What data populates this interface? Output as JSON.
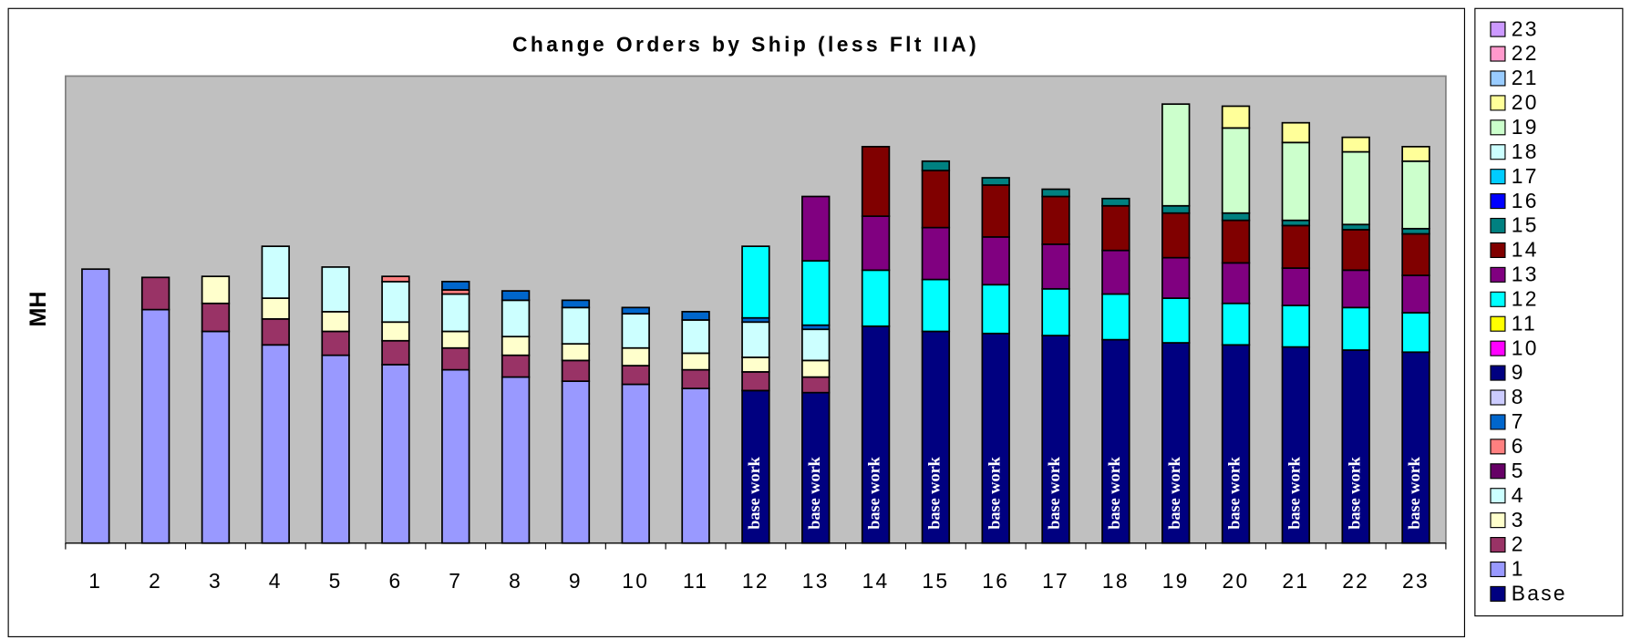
{
  "chart_data": {
    "type": "stacked_bar",
    "title": "Change Orders by Ship (less Flt IIA)",
    "y_label": "MH",
    "annotation": "base work",
    "categories": [
      "1",
      "2",
      "3",
      "4",
      "5",
      "6",
      "7",
      "8",
      "9",
      "10",
      "11",
      "12",
      "13",
      "14",
      "15",
      "16",
      "17",
      "18",
      "19",
      "20",
      "21",
      "22",
      "23"
    ],
    "ylim": [
      0,
      450
    ],
    "series": [
      {
        "name": "Base",
        "color": "#000080",
        "values": [
          null,
          null,
          null,
          null,
          null,
          null,
          null,
          null,
          null,
          null,
          null,
          147,
          145,
          209,
          204,
          202,
          200,
          196,
          193,
          191,
          189,
          186,
          184
        ]
      },
      {
        "name": "1",
        "color": "#9999ff",
        "values": [
          264,
          225,
          204,
          191,
          181,
          172,
          167,
          160,
          156,
          153,
          149,
          null,
          null,
          null,
          null,
          null,
          null,
          null,
          null,
          null,
          null,
          null,
          null
        ]
      },
      {
        "name": "2",
        "color": "#993366",
        "values": [
          null,
          31,
          27,
          25,
          23,
          23,
          21,
          21,
          20,
          18,
          18,
          18,
          15,
          null,
          null,
          null,
          null,
          null,
          null,
          null,
          null,
          null,
          null
        ]
      },
      {
        "name": "3",
        "color": "#ffffcc",
        "values": [
          null,
          null,
          26,
          20,
          19,
          18,
          16,
          18,
          16,
          17,
          16,
          14,
          16,
          null,
          null,
          null,
          null,
          null,
          null,
          null,
          null,
          null,
          null
        ]
      },
      {
        "name": "4",
        "color": "#ccffff",
        "values": [
          null,
          null,
          null,
          50,
          43,
          39,
          36,
          35,
          35,
          33,
          32,
          34,
          30,
          null,
          null,
          null,
          null,
          null,
          null,
          null,
          null,
          null,
          null
        ]
      },
      {
        "name": "5",
        "color": "#660066",
        "values": [
          null,
          null,
          null,
          null,
          null,
          null,
          null,
          null,
          null,
          null,
          null,
          null,
          null,
          null,
          null,
          null,
          null,
          null,
          null,
          null,
          null,
          null,
          null
        ]
      },
      {
        "name": "6",
        "color": "#ff8080",
        "values": [
          null,
          null,
          null,
          null,
          null,
          5,
          4,
          null,
          null,
          null,
          null,
          null,
          null,
          null,
          null,
          null,
          null,
          null,
          null,
          null,
          null,
          null,
          null
        ]
      },
      {
        "name": "7",
        "color": "#0066cc",
        "values": [
          null,
          null,
          null,
          null,
          null,
          null,
          8,
          9,
          7,
          6,
          8,
          4,
          4,
          null,
          null,
          null,
          null,
          null,
          null,
          null,
          null,
          null,
          null
        ]
      },
      {
        "name": "8",
        "color": "#ccccff",
        "values": [
          null,
          null,
          null,
          null,
          null,
          null,
          null,
          null,
          null,
          null,
          null,
          null,
          null,
          null,
          null,
          null,
          null,
          null,
          null,
          null,
          null,
          null,
          null
        ]
      },
      {
        "name": "9",
        "color": "#000080",
        "values": [
          null,
          null,
          null,
          null,
          null,
          null,
          null,
          null,
          null,
          null,
          null,
          null,
          null,
          null,
          null,
          null,
          null,
          null,
          null,
          null,
          null,
          null,
          null
        ]
      },
      {
        "name": "10",
        "color": "#ff00ff",
        "values": [
          null,
          null,
          null,
          null,
          null,
          null,
          null,
          null,
          null,
          null,
          null,
          null,
          null,
          null,
          null,
          null,
          null,
          null,
          null,
          null,
          null,
          null,
          null
        ]
      },
      {
        "name": "11",
        "color": "#ffff00",
        "values": [
          null,
          null,
          null,
          null,
          null,
          null,
          null,
          null,
          null,
          null,
          null,
          null,
          null,
          null,
          null,
          null,
          null,
          null,
          null,
          null,
          null,
          null,
          null
        ]
      },
      {
        "name": "12",
        "color": "#00ffff",
        "values": [
          null,
          null,
          null,
          null,
          null,
          null,
          null,
          null,
          null,
          null,
          null,
          69,
          62,
          54,
          50,
          47,
          45,
          44,
          43,
          40,
          40,
          41,
          38
        ]
      },
      {
        "name": "13",
        "color": "#800080",
        "values": [
          null,
          null,
          null,
          null,
          null,
          null,
          null,
          null,
          null,
          null,
          null,
          null,
          62,
          52,
          50,
          46,
          43,
          42,
          39,
          39,
          36,
          36,
          36
        ]
      },
      {
        "name": "14",
        "color": "#800000",
        "values": [
          null,
          null,
          null,
          null,
          null,
          null,
          null,
          null,
          null,
          null,
          null,
          null,
          null,
          67,
          55,
          50,
          46,
          43,
          43,
          41,
          41,
          39,
          40
        ]
      },
      {
        "name": "15",
        "color": "#008080",
        "values": [
          null,
          null,
          null,
          null,
          null,
          null,
          null,
          null,
          null,
          null,
          null,
          null,
          null,
          null,
          9,
          7,
          7,
          7,
          7,
          7,
          5,
          5,
          5
        ]
      },
      {
        "name": "16",
        "color": "#0000ff",
        "values": [
          null,
          null,
          null,
          null,
          null,
          null,
          null,
          null,
          null,
          null,
          null,
          null,
          null,
          null,
          null,
          null,
          null,
          null,
          null,
          null,
          null,
          null,
          null
        ]
      },
      {
        "name": "17",
        "color": "#00ccff",
        "values": [
          null,
          null,
          null,
          null,
          null,
          null,
          null,
          null,
          null,
          null,
          null,
          null,
          null,
          null,
          null,
          null,
          null,
          null,
          null,
          null,
          null,
          null,
          null
        ]
      },
      {
        "name": "18",
        "color": "#ccffff",
        "values": [
          null,
          null,
          null,
          null,
          null,
          null,
          null,
          null,
          null,
          null,
          null,
          null,
          null,
          null,
          null,
          null,
          null,
          null,
          null,
          null,
          null,
          null,
          null
        ]
      },
      {
        "name": "19",
        "color": "#ccffcc",
        "values": [
          null,
          null,
          null,
          null,
          null,
          null,
          null,
          null,
          null,
          null,
          null,
          null,
          null,
          null,
          null,
          null,
          null,
          null,
          98,
          82,
          75,
          70,
          65
        ]
      },
      {
        "name": "20",
        "color": "#ffff99",
        "values": [
          null,
          null,
          null,
          null,
          null,
          null,
          null,
          null,
          null,
          null,
          null,
          null,
          null,
          null,
          null,
          null,
          null,
          null,
          null,
          21,
          19,
          14,
          14
        ]
      },
      {
        "name": "21",
        "color": "#99ccff",
        "values": [
          null,
          null,
          null,
          null,
          null,
          null,
          null,
          null,
          null,
          null,
          null,
          null,
          null,
          null,
          null,
          null,
          null,
          null,
          null,
          null,
          null,
          null,
          null
        ]
      },
      {
        "name": "22",
        "color": "#ff99cc",
        "values": [
          null,
          null,
          null,
          null,
          null,
          null,
          null,
          null,
          null,
          null,
          null,
          null,
          null,
          null,
          null,
          null,
          null,
          null,
          null,
          null,
          null,
          null,
          null
        ]
      },
      {
        "name": "23",
        "color": "#cc99ff",
        "values": [
          null,
          null,
          null,
          null,
          null,
          null,
          null,
          null,
          null,
          null,
          null,
          null,
          null,
          null,
          null,
          null,
          null,
          null,
          null,
          null,
          null,
          null,
          null
        ]
      }
    ]
  }
}
